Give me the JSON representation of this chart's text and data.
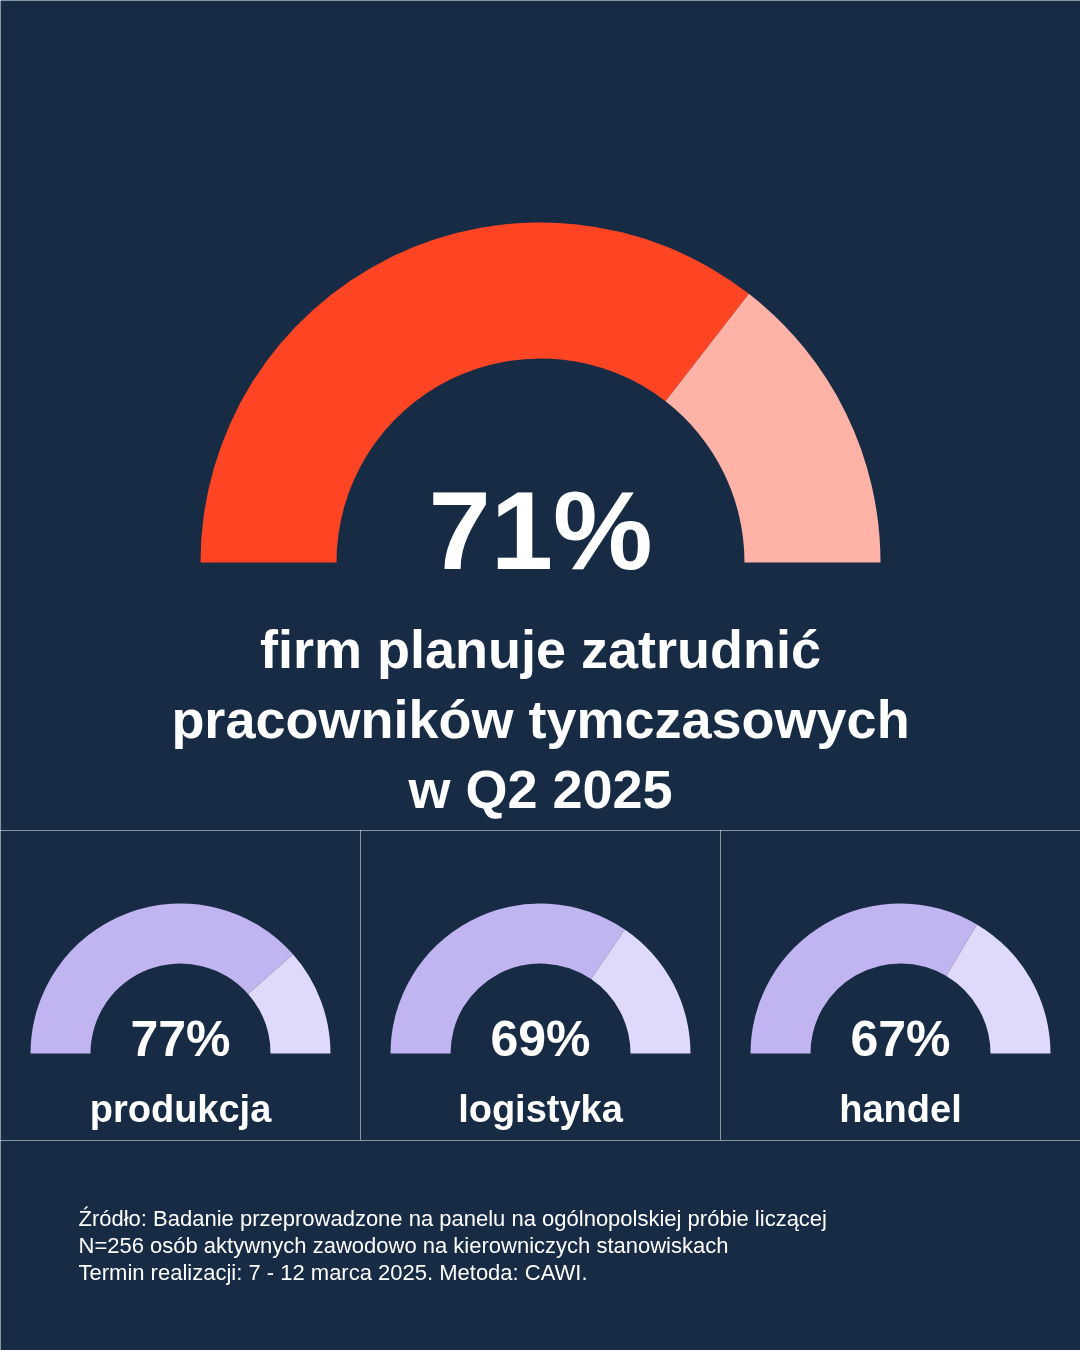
{
  "chart_data": [
    {
      "type": "donut",
      "title": "firm planuje zatrudnić pracowników tymczasowych w Q2 2025",
      "categories": [
        null,
        null
      ],
      "values": [
        71,
        29
      ],
      "colors": [
        "#ff4524",
        "#ffb3a6"
      ],
      "value_labels": [
        "71%",
        null
      ]
    },
    {
      "type": "donut",
      "title": "produkcja",
      "categories": [
        null,
        null
      ],
      "values": [
        77,
        23
      ],
      "colors": [
        "#c0b5f1",
        "#dfd9fa"
      ],
      "value_labels": [
        "77%",
        null
      ]
    },
    {
      "type": "donut",
      "title": "logistyka",
      "categories": [
        null,
        null
      ],
      "values": [
        69,
        31
      ],
      "colors": [
        "#c0b5f1",
        "#dfd9fa"
      ],
      "value_labels": [
        "69%",
        null
      ]
    },
    {
      "type": "donut",
      "title": "handel",
      "categories": [
        null,
        null
      ],
      "values": [
        67,
        33
      ],
      "colors": [
        "#c0b5f1",
        "#dfd9fa"
      ],
      "value_labels": [
        "67%",
        null
      ],
      "annotations": [
        "Źródło: Badanie przeprowadzone na panelu na ogólnopolskiej próbie liczącej N=256 osób aktywnych zawodowo na kierowniczych stanowiskach",
        "Termin realizacji: 7 - 12 marca 2025. Metoda: CAWI."
      ]
    }
  ]
}
